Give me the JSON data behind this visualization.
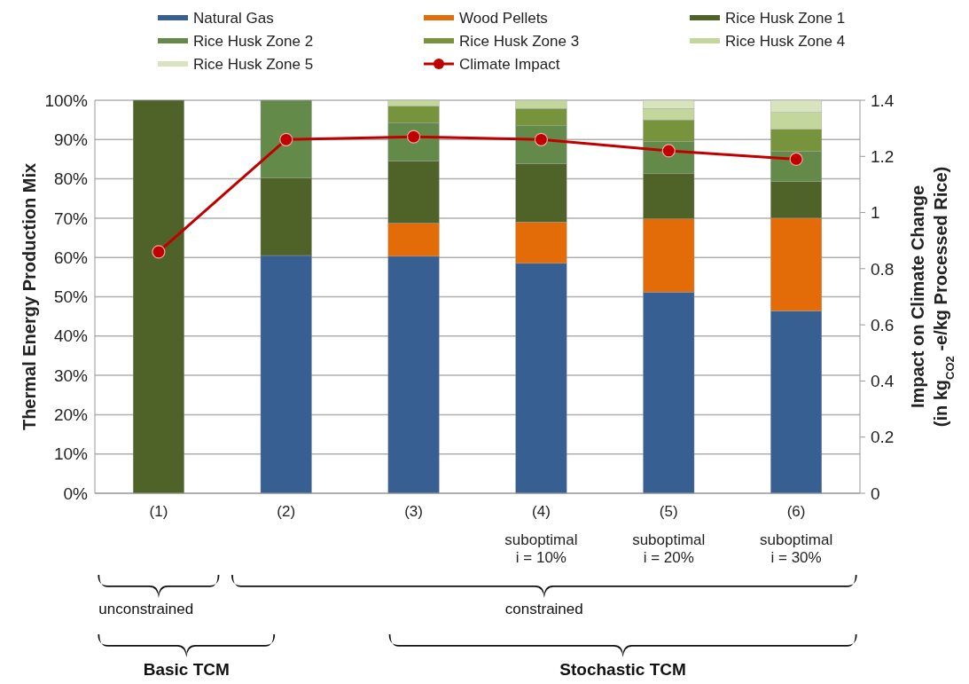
{
  "chart_data": {
    "type": "bar",
    "stacked": true,
    "categories": [
      "(1)",
      "(2)",
      "(3)",
      "(4)\nsuboptimal\ni = 10%",
      "(5)\nsuboptimal\ni = 20%",
      "(6)\nsuboptimal\ni = 30%"
    ],
    "series": [
      {
        "name": "Natural Gas",
        "color": "#385f91",
        "values": [
          null,
          60.5,
          60.3,
          58.5,
          51.2,
          46.4
        ]
      },
      {
        "name": "Wood Pellets",
        "color": "#e36c09",
        "values": [
          null,
          null,
          8.4,
          10.5,
          18.6,
          23.6
        ]
      },
      {
        "name": "Rice Husk Zone 1",
        "color": "#4f6228",
        "values": [
          100,
          19.7,
          15.8,
          14.9,
          11.5,
          9.3
        ]
      },
      {
        "name": "Rice Husk Zone 2",
        "color": "#648a4a",
        "values": [
          null,
          19.8,
          9.8,
          9.6,
          8.2,
          7.7
        ]
      },
      {
        "name": "Rice Husk Zone 3",
        "color": "#77933c",
        "values": [
          null,
          null,
          4.2,
          4.4,
          5.5,
          5.6
        ]
      },
      {
        "name": "Rice Husk Zone 4",
        "color": "#c3d69b",
        "values": [
          null,
          null,
          1.5,
          2.1,
          2.9,
          4.3
        ]
      },
      {
        "name": "Rice Husk Zone 5",
        "color": "#d7e4bd",
        "values": [
          null,
          null,
          null,
          null,
          2.1,
          3.1
        ]
      },
      {
        "name": "Climate Impact",
        "type": "line",
        "axis": "y2",
        "color": "#c00000",
        "marker": "circle",
        "values": [
          0.86,
          1.26,
          1.27,
          1.26,
          1.22,
          1.19
        ]
      }
    ],
    "ylabel": "Thermal Energy Production Mix",
    "y2label": "Impact on Climate Change\n(in kg$_{CO2}$ -e/kg Processed Rice)",
    "ylim": [
      0,
      100
    ],
    "yticks": [
      {
        "value": 0,
        "label": "0%"
      },
      {
        "value": 10,
        "label": "10%"
      },
      {
        "value": 20,
        "label": "20%"
      },
      {
        "value": 30,
        "label": "30%"
      },
      {
        "value": 40,
        "label": "40%"
      },
      {
        "value": 50,
        "label": "50%"
      },
      {
        "value": 60,
        "label": "60%"
      },
      {
        "value": 70,
        "label": "70%"
      },
      {
        "value": 80,
        "label": "80%"
      },
      {
        "value": 90,
        "label": "90%"
      },
      {
        "value": 100,
        "label": "100%"
      }
    ],
    "y2lim": [
      0,
      1.4
    ],
    "y2ticks": [
      0,
      0.2,
      0.4,
      0.6,
      0.8,
      1,
      1.2,
      1.4
    ],
    "grid": "y",
    "legend": "top",
    "annotations": [
      "unconstrained",
      "constrained",
      "Basic TCM",
      "Stochastic TCM"
    ]
  }
}
